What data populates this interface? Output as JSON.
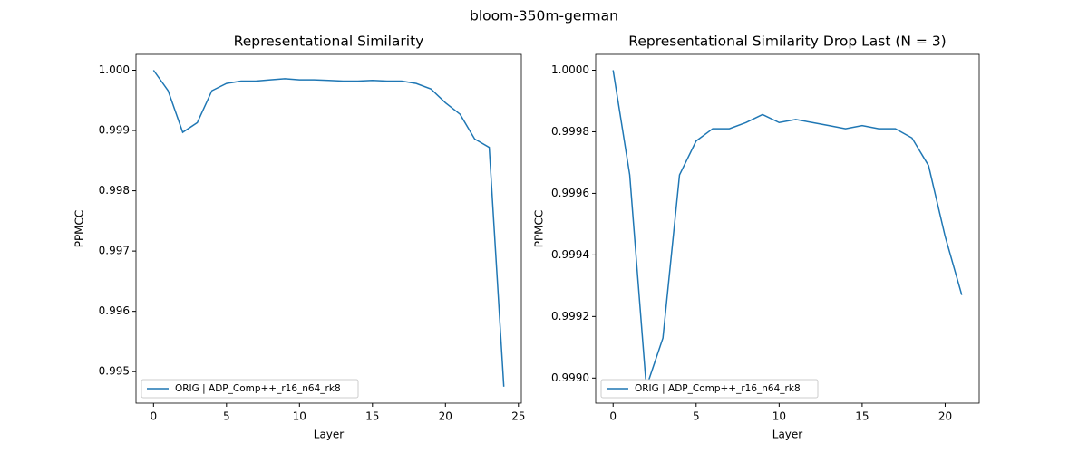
{
  "figure_title": "bloom-350m-german",
  "chart_data": [
    {
      "type": "line",
      "title": "Representational Similarity",
      "xlabel": "Layer",
      "ylabel": "PPMCC",
      "x": [
        0,
        1,
        2,
        3,
        4,
        5,
        6,
        7,
        8,
        9,
        10,
        11,
        12,
        13,
        14,
        15,
        16,
        17,
        18,
        19,
        20,
        21,
        22,
        23,
        24
      ],
      "series": [
        {
          "name": "ORIG | ADP_Comp++_r16_n64_rk8",
          "color": "#1f77b4",
          "values": [
            1.0,
            0.99966,
            0.99897,
            0.99913,
            0.99966,
            0.99978,
            0.99982,
            0.99982,
            0.99984,
            0.99986,
            0.99984,
            0.99984,
            0.99983,
            0.99982,
            0.99982,
            0.99983,
            0.99982,
            0.99982,
            0.99978,
            0.99969,
            0.99946,
            0.99927,
            0.99886,
            0.99872,
            0.99475
          ]
        }
      ],
      "xlim": [
        -1.2,
        25.2
      ],
      "ylim": [
        0.994477,
        1.000263
      ],
      "xticks": [
        0,
        5,
        10,
        15,
        20,
        25
      ],
      "yticks": [
        0.995,
        0.996,
        0.997,
        0.998,
        0.999,
        {
          "value": 1,
          "label": "1.000"
        }
      ],
      "legend": "lower left"
    },
    {
      "type": "line",
      "title": "Representational Similarity Drop Last (N = 3)",
      "xlabel": "Layer",
      "ylabel": "PPMCC",
      "x": [
        0,
        1,
        2,
        3,
        4,
        5,
        6,
        7,
        8,
        9,
        10,
        11,
        12,
        13,
        14,
        15,
        16,
        17,
        18,
        19,
        20,
        21
      ],
      "series": [
        {
          "name": "ORIG | ADP_Comp++_r16_n64_rk8",
          "color": "#1f77b4",
          "values": [
            1.0,
            0.99966,
            0.99897,
            0.99913,
            0.99966,
            0.99977,
            0.99981,
            0.99981,
            0.99983,
            0.999856,
            0.99983,
            0.99984,
            0.99983,
            0.99982,
            0.99981,
            0.99982,
            0.99981,
            0.99981,
            0.99978,
            0.99969,
            0.99946,
            0.99927
          ]
        }
      ],
      "xlim": [
        -1.05,
        22.05
      ],
      "ylim": [
        0.9989185,
        1.0000515
      ],
      "xticks": [
        0,
        5,
        10,
        15,
        20
      ],
      "yticks": [
        {
          "value": 0.999,
          "label": "0.9990"
        },
        0.9992,
        0.9994,
        0.9996,
        0.9998,
        {
          "value": 1,
          "label": "1.0000"
        }
      ],
      "legend": "lower left"
    }
  ]
}
